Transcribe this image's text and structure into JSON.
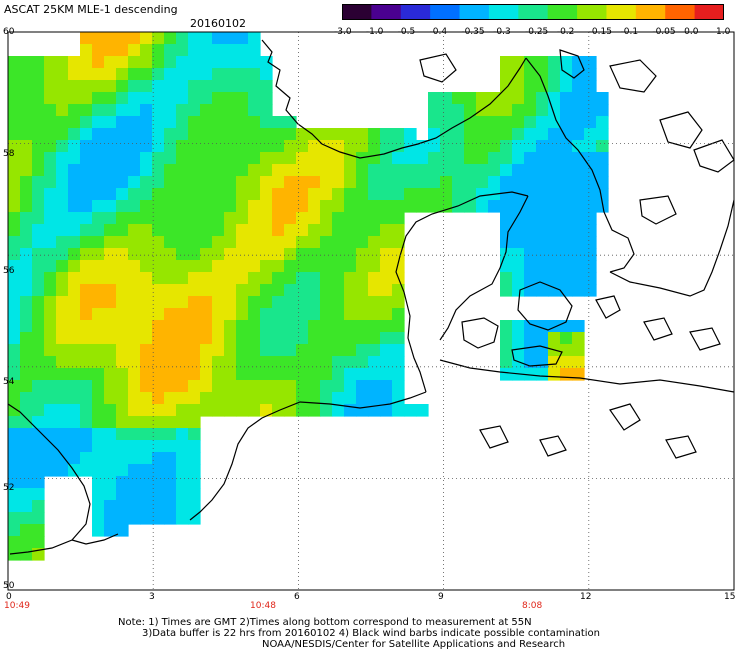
{
  "title": "ASCAT 25KM MLE-1 descending",
  "date": "20160102",
  "colorbar": {
    "labels": [
      "-3.0",
      "-1.0",
      "-0.5",
      "-0.4",
      "-0.35",
      "-0.3",
      "-0.25",
      "-0.2",
      "-0.15",
      "-0.1",
      "-0.05",
      "0.0",
      "1.0"
    ],
    "colors": [
      "#2b0033",
      "#4a0090",
      "#2a2ad8",
      "#0070ff",
      "#00b4ff",
      "#00e6e6",
      "#19e68c",
      "#3ce628",
      "#96e600",
      "#e6e600",
      "#ffb400",
      "#ff6400",
      "#e61e1e"
    ]
  },
  "axes": {
    "lat_labels": [
      "60",
      "58",
      "56",
      "54",
      "52",
      "50"
    ],
    "lon_labels": [
      "0",
      "3",
      "6",
      "9",
      "12",
      "15"
    ]
  },
  "times": [
    "10:49",
    "10:48",
    "8:08"
  ],
  "notes": {
    "line1": "Note: 1) Times are GMT 2)Times along bottom correspond to measurement at 55N",
    "line2": "3)Data buffer is 22 hrs from 20160102 4) Black wind barbs indicate possible contamination",
    "line3": "NOAA/NESDIS/Center for Satellite Applications and Research"
  },
  "colors": {
    "land_outline": "#000000",
    "background": "#ffffff",
    "gridline": "#555555",
    "time_label": "#e0261a"
  }
}
